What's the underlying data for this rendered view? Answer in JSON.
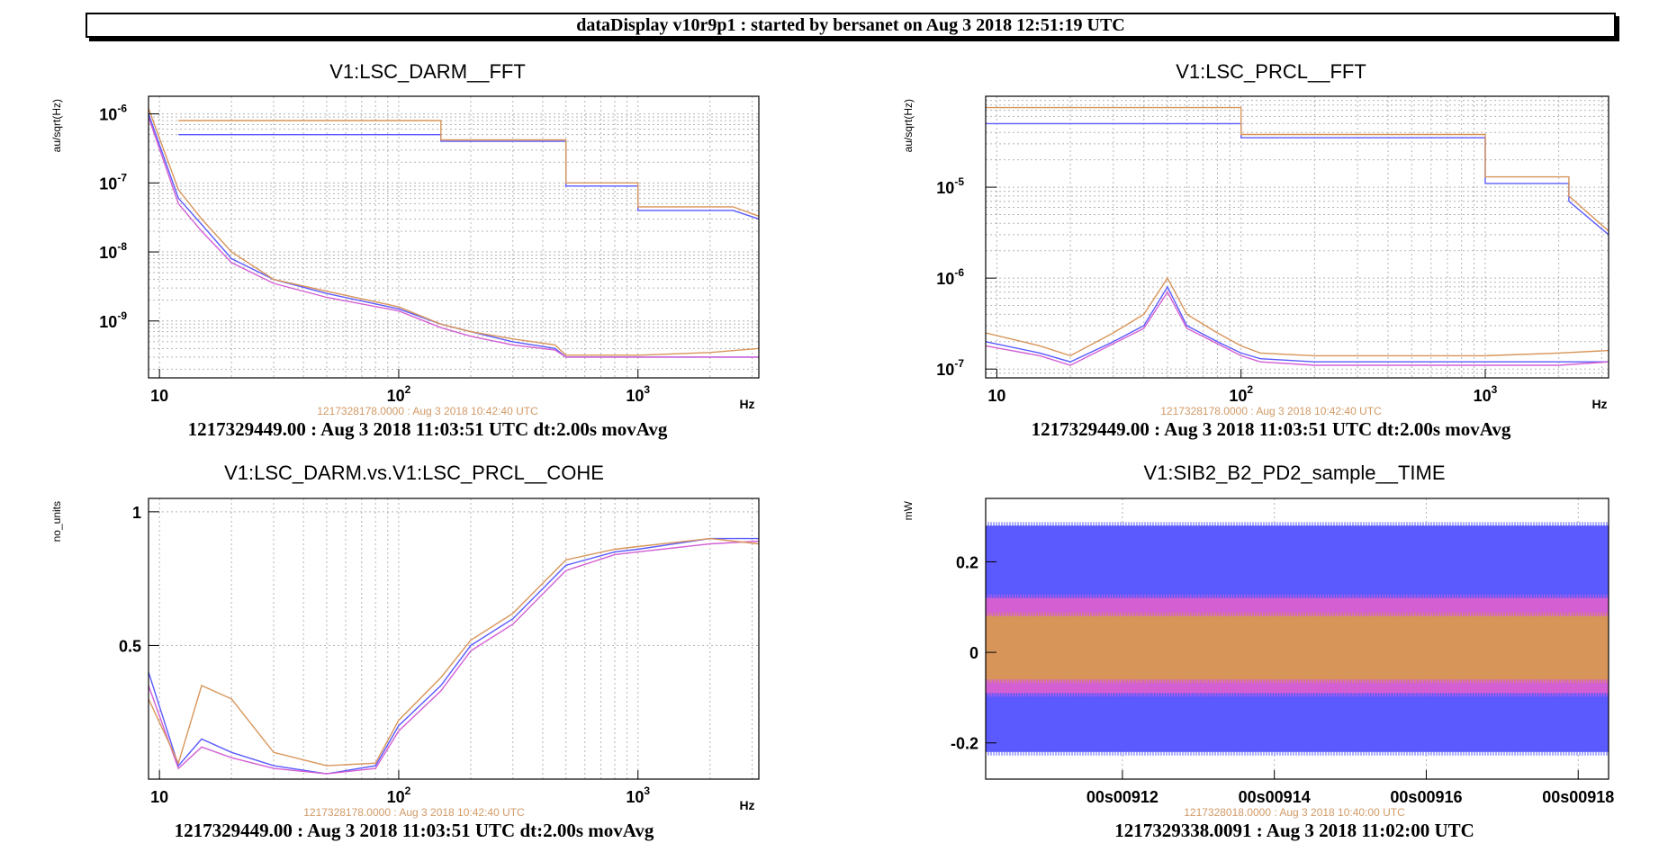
{
  "header": {
    "title": "dataDisplay v10r9p1 : started by bersanet on Aug  3 2018 12:51:19 UTC"
  },
  "colors": {
    "series_a": "#5a5aff",
    "series_b": "#d35fd3",
    "series_c": "#d8955a",
    "reference_text": "#d29a66",
    "grid": "#b4b4b4"
  },
  "chart_data": [
    {
      "type": "line",
      "title": "V1:LSC_DARM__FFT",
      "ylabel": "au/sqrt(Hz)",
      "xlabel": "",
      "x_scale": "log",
      "y_scale": "log",
      "xlim": [
        9,
        3200
      ],
      "ylim": [
        1.5e-10,
        1.8e-06
      ],
      "x_ticks": [
        {
          "v": 10,
          "label": "10"
        },
        {
          "v": 100,
          "label": "10",
          "sup": "2"
        },
        {
          "v": 1000,
          "label": "10",
          "sup": "3"
        }
      ],
      "y_ticks": [
        {
          "v": 1e-09,
          "label": "10",
          "sup": "-9"
        },
        {
          "v": 1e-08,
          "label": "10",
          "sup": "-8"
        },
        {
          "v": 1e-07,
          "label": "10",
          "sup": "-7"
        },
        {
          "v": 1e-06,
          "label": "10",
          "sup": "-6"
        }
      ],
      "hz_label": "Hz",
      "reference_time": "1217328178.0000 : Aug  3 2018 10:42:40 UTC",
      "footer": "1217329449.00 : Aug  3 2018 11:03:51 UTC dt:2.00s movAvg",
      "grid": true,
      "series": [
        {
          "color": "#5a5aff",
          "x": [
            9,
            12,
            15,
            20,
            30,
            50,
            100,
            150,
            200,
            300,
            450,
            500,
            1000,
            2000,
            3200
          ],
          "y": [
            1e-06,
            6e-08,
            2.5e-08,
            8e-09,
            4e-09,
            2.5e-09,
            1.5e-09,
            9e-10,
            7e-10,
            5e-10,
            4e-10,
            3e-10,
            3e-10,
            3e-10,
            3e-10
          ]
        },
        {
          "color": "#d35fd3",
          "x": [
            9,
            12,
            15,
            20,
            30,
            50,
            100,
            150,
            200,
            300,
            450,
            500,
            1000,
            2000,
            3200
          ],
          "y": [
            9e-07,
            5e-08,
            2e-08,
            7e-09,
            3.5e-09,
            2.2e-09,
            1.4e-09,
            8e-10,
            6e-10,
            4.5e-10,
            3.8e-10,
            3e-10,
            3e-10,
            3e-10,
            3e-10
          ]
        },
        {
          "color": "#d8955a",
          "x": [
            9,
            12,
            15,
            20,
            30,
            50,
            100,
            150,
            200,
            300,
            450,
            500,
            1000,
            2000,
            3200
          ],
          "y": [
            1.2e-06,
            8e-08,
            3e-08,
            1e-08,
            4e-09,
            2.7e-09,
            1.6e-09,
            9e-10,
            7e-10,
            5.5e-10,
            4.5e-10,
            3.2e-10,
            3.2e-10,
            3.5e-10,
            4e-10
          ]
        },
        {
          "color": "#5a5aff",
          "x": [
            12,
            150,
            150,
            500,
            500,
            800,
            800,
            1000,
            1000,
            2500,
            3200
          ],
          "y": [
            5e-07,
            5e-07,
            4e-07,
            4e-07,
            9e-08,
            9e-08,
            9e-08,
            9e-08,
            4e-08,
            4e-08,
            3e-08
          ]
        },
        {
          "color": "#d8955a",
          "x": [
            12,
            150,
            150,
            500,
            500,
            800,
            800,
            1000,
            1000,
            2500,
            3200
          ],
          "y": [
            8e-07,
            8e-07,
            4.2e-07,
            4.2e-07,
            1e-07,
            1e-07,
            1e-07,
            1e-07,
            4.5e-08,
            4.5e-08,
            3.3e-08
          ]
        }
      ]
    },
    {
      "type": "line",
      "title": "V1:LSC_PRCL__FFT",
      "ylabel": "au/sqrt(Hz)",
      "xlabel": "",
      "x_scale": "log",
      "y_scale": "log",
      "xlim": [
        9,
        3200
      ],
      "ylim": [
        8e-08,
        0.0001
      ],
      "x_ticks": [
        {
          "v": 10,
          "label": "10"
        },
        {
          "v": 100,
          "label": "10",
          "sup": "2"
        },
        {
          "v": 1000,
          "label": "10",
          "sup": "3"
        }
      ],
      "y_ticks": [
        {
          "v": 1e-07,
          "label": "10",
          "sup": "-7"
        },
        {
          "v": 1e-06,
          "label": "10",
          "sup": "-6"
        },
        {
          "v": 1e-05,
          "label": "10",
          "sup": "-5"
        }
      ],
      "hz_label": "Hz",
      "reference_time": "1217328178.0000 : Aug  3 2018 10:42:40 UTC",
      "footer": "1217329449.00 : Aug  3 2018 11:03:51 UTC dt:2.00s movAvg",
      "grid": true,
      "series": [
        {
          "color": "#5a5aff",
          "x": [
            9,
            15,
            20,
            30,
            40,
            50,
            60,
            80,
            100,
            120,
            200,
            400,
            1000,
            2000,
            3200
          ],
          "y": [
            2e-07,
            1.5e-07,
            1.2e-07,
            2e-07,
            3e-07,
            8e-07,
            3e-07,
            2e-07,
            1.5e-07,
            1.3e-07,
            1.2e-07,
            1.2e-07,
            1.2e-07,
            1.2e-07,
            1.2e-07
          ]
        },
        {
          "color": "#d35fd3",
          "x": [
            9,
            15,
            20,
            30,
            40,
            50,
            60,
            80,
            100,
            120,
            200,
            400,
            1000,
            2000,
            3200
          ],
          "y": [
            1.8e-07,
            1.4e-07,
            1.1e-07,
            1.9e-07,
            2.8e-07,
            7e-07,
            2.8e-07,
            1.9e-07,
            1.4e-07,
            1.2e-07,
            1.1e-07,
            1.1e-07,
            1.1e-07,
            1.1e-07,
            1.2e-07
          ]
        },
        {
          "color": "#d8955a",
          "x": [
            9,
            15,
            20,
            30,
            40,
            50,
            60,
            80,
            100,
            120,
            200,
            400,
            1000,
            2000,
            3200
          ],
          "y": [
            2.5e-07,
            1.8e-07,
            1.4e-07,
            2.5e-07,
            4e-07,
            1e-06,
            4e-07,
            2.5e-07,
            1.8e-07,
            1.5e-07,
            1.4e-07,
            1.4e-07,
            1.4e-07,
            1.5e-07,
            1.6e-07
          ]
        },
        {
          "color": "#5a5aff",
          "x": [
            9,
            100,
            100,
            1000,
            1000,
            2200,
            2200,
            3200
          ],
          "y": [
            5e-05,
            5e-05,
            3.5e-05,
            3.5e-05,
            1.1e-05,
            1.1e-05,
            7e-06,
            3e-06
          ]
        },
        {
          "color": "#d8955a",
          "x": [
            9,
            100,
            100,
            1000,
            1000,
            2200,
            2200,
            3200
          ],
          "y": [
            7.5e-05,
            7.5e-05,
            3.8e-05,
            3.8e-05,
            1.3e-05,
            1.3e-05,
            8e-06,
            3.3e-06
          ]
        }
      ]
    },
    {
      "type": "line",
      "title": "V1:LSC_DARM.vs.V1:LSC_PRCL__COHE",
      "ylabel": "no_units",
      "xlabel": "",
      "x_scale": "log",
      "y_scale": "linear",
      "xlim": [
        9,
        3200
      ],
      "ylim": [
        0,
        1.05
      ],
      "x_ticks": [
        {
          "v": 10,
          "label": "10"
        },
        {
          "v": 100,
          "label": "10",
          "sup": "2"
        },
        {
          "v": 1000,
          "label": "10",
          "sup": "3"
        }
      ],
      "y_ticks": [
        {
          "v": 0.5,
          "label": "0.5"
        },
        {
          "v": 1,
          "label": "1"
        }
      ],
      "hz_label": "Hz",
      "reference_time": "1217328178.0000 : Aug  3 2018 10:42:40 UTC",
      "footer": "1217329449.00 : Aug  3 2018 11:03:51 UTC dt:2.00s movAvg",
      "grid": true,
      "series": [
        {
          "color": "#5a5aff",
          "x": [
            9,
            12,
            15,
            20,
            30,
            50,
            80,
            100,
            150,
            200,
            300,
            500,
            800,
            1000,
            2000,
            3200
          ],
          "y": [
            0.4,
            0.05,
            0.15,
            0.1,
            0.05,
            0.02,
            0.05,
            0.2,
            0.35,
            0.5,
            0.6,
            0.8,
            0.85,
            0.86,
            0.9,
            0.9
          ]
        },
        {
          "color": "#d35fd3",
          "x": [
            9,
            12,
            15,
            20,
            30,
            50,
            80,
            100,
            150,
            200,
            300,
            500,
            800,
            1000,
            2000,
            3200
          ],
          "y": [
            0.35,
            0.04,
            0.12,
            0.08,
            0.04,
            0.02,
            0.04,
            0.18,
            0.33,
            0.48,
            0.58,
            0.78,
            0.84,
            0.85,
            0.88,
            0.89
          ]
        },
        {
          "color": "#d8955a",
          "x": [
            9,
            12,
            15,
            20,
            30,
            50,
            80,
            100,
            150,
            200,
            300,
            500,
            800,
            1000,
            2000,
            3200
          ],
          "y": [
            0.3,
            0.06,
            0.35,
            0.3,
            0.1,
            0.05,
            0.06,
            0.22,
            0.38,
            0.52,
            0.62,
            0.82,
            0.86,
            0.87,
            0.9,
            0.88
          ]
        }
      ]
    },
    {
      "type": "line",
      "title": "V1:SIB2_B2_PD2_sample__TIME",
      "ylabel": "mW",
      "xlabel": "",
      "x_scale": "linear",
      "y_scale": "linear",
      "xlim": [
        910.2,
        918.4
      ],
      "ylim": [
        -0.28,
        0.34
      ],
      "x_ticks": [
        {
          "v": 912,
          "label": "00s00912"
        },
        {
          "v": 914,
          "label": "00s00914"
        },
        {
          "v": 916,
          "label": "00s00916"
        },
        {
          "v": 918,
          "label": "00s00918"
        }
      ],
      "y_ticks": [
        {
          "v": -0.2,
          "label": "-0.2"
        },
        {
          "v": 0,
          "label": "0"
        },
        {
          "v": 0.2,
          "label": "0.2"
        }
      ],
      "hz_label": "",
      "reference_time": "1217328018.0000 : Aug  3 2018 10:40:00 UTC",
      "footer": "1217329338.0091 : Aug  3 2018 11:02:00 UTC",
      "grid": true,
      "series": [
        {
          "color": "#5a5aff",
          "band": [
            -0.22,
            0.28
          ]
        },
        {
          "color": "#d35fd3",
          "band": [
            -0.09,
            0.12
          ]
        },
        {
          "color": "#d8955a",
          "band": [
            -0.06,
            0.08
          ]
        }
      ]
    }
  ]
}
